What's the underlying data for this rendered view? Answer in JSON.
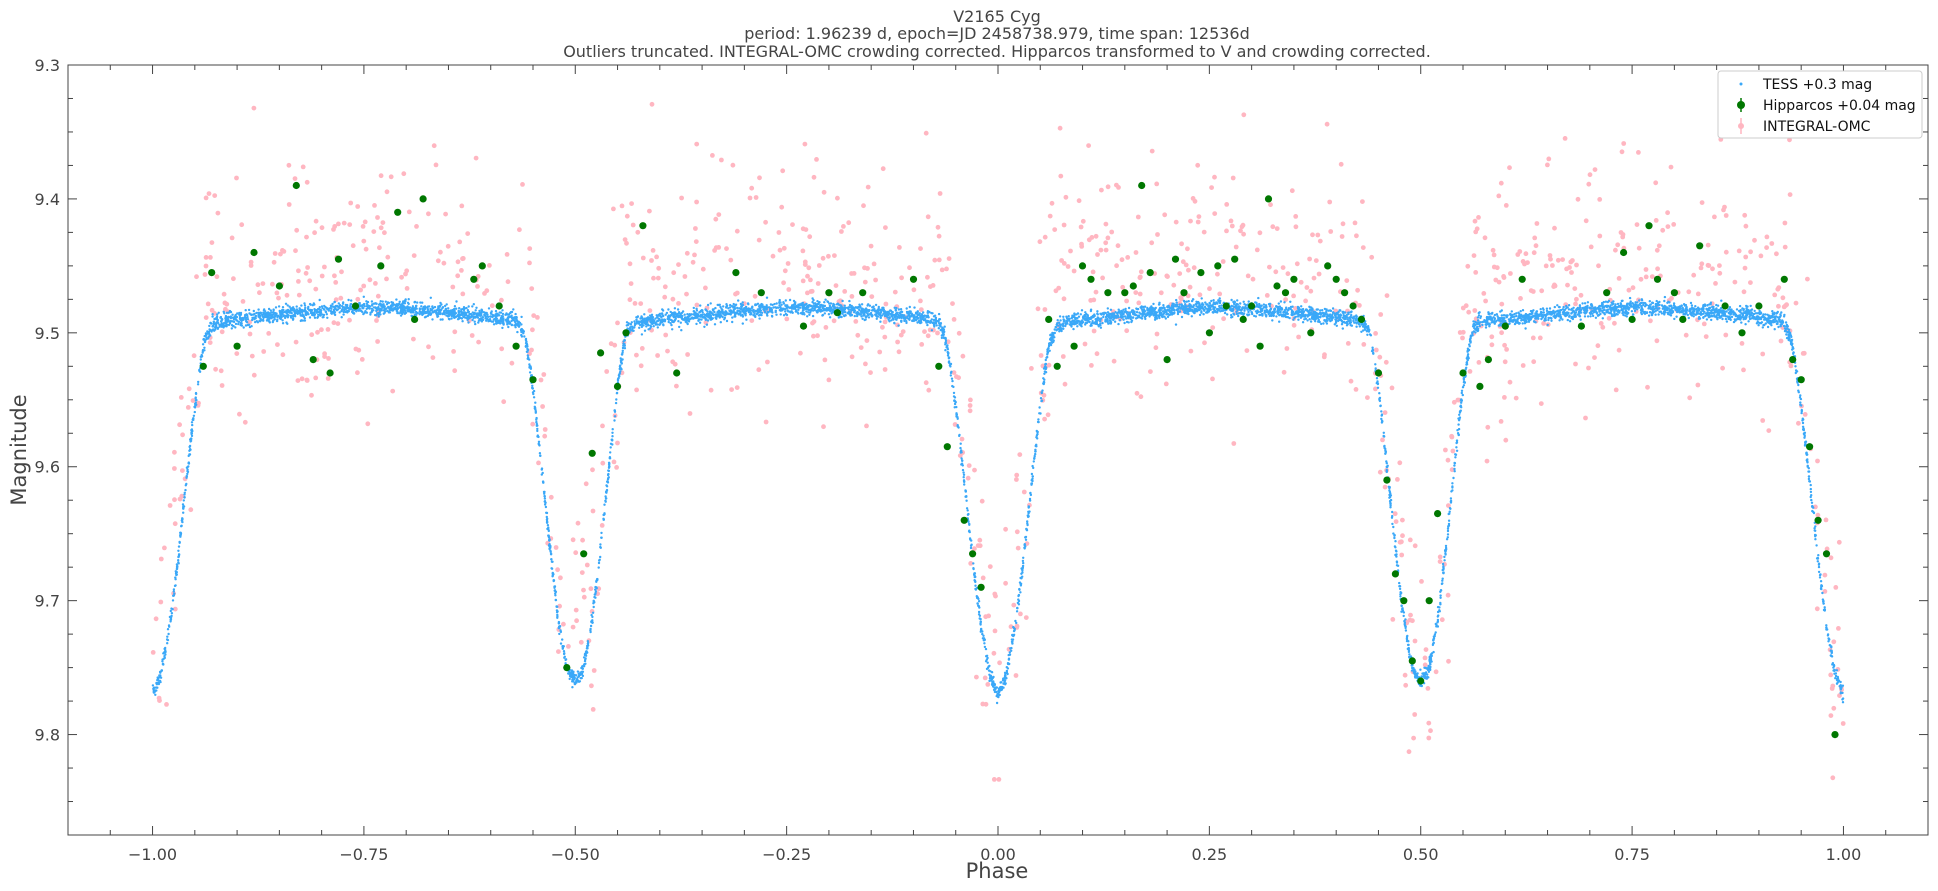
{
  "chart_data": {
    "type": "scatter",
    "title": "V2165 Cyg",
    "subtitle_1": "period: 1.96239 d, epoch=JD 2458738.979, time span: 12536d",
    "subtitle_2": "Outliers truncated. INTEGRAL-OMC crowding corrected. Hipparcos transformed to V and crowding corrected.",
    "xlabel": "Phase",
    "ylabel": "Magnitude",
    "xlim": [
      -1.1,
      1.1
    ],
    "ylim": [
      9.3,
      9.875
    ],
    "y_inverted": true,
    "grid": false,
    "legend_position": "top-right",
    "x_ticks": [
      -1.0,
      -0.75,
      -0.5,
      -0.25,
      0.0,
      0.25,
      0.5,
      0.75,
      1.0
    ],
    "x_tick_labels": [
      "−1.00",
      "−0.75",
      "−0.50",
      "−0.25",
      "0.00",
      "0.25",
      "0.50",
      "0.75",
      "1.00"
    ],
    "y_ticks": [
      9.3,
      9.4,
      9.5,
      9.6,
      9.7,
      9.8
    ],
    "y_tick_labels": [
      "9.3",
      "9.4",
      "9.5",
      "9.6",
      "9.7",
      "9.8"
    ],
    "series": [
      {
        "name": "TESS +0.3 mag",
        "color": "#3aa8f8",
        "marker": "dot",
        "x": [
          0.0,
          0.01,
          0.02,
          0.03,
          0.04,
          0.05,
          0.06,
          0.07,
          0.08,
          0.1,
          0.15,
          0.2,
          0.25,
          0.3,
          0.35,
          0.4,
          0.43,
          0.44,
          0.45,
          0.46,
          0.47,
          0.48,
          0.49,
          0.5,
          0.51,
          0.52,
          0.53,
          0.54,
          0.55,
          0.56,
          0.57,
          0.6,
          0.65,
          0.7,
          0.75,
          0.8,
          0.85,
          0.9,
          0.93,
          0.94,
          0.95,
          0.96,
          0.97,
          0.98,
          0.99,
          1.0
        ],
        "y": [
          9.77,
          9.755,
          9.72,
          9.67,
          9.61,
          9.555,
          9.51,
          9.495,
          9.492,
          9.49,
          9.487,
          9.483,
          9.481,
          9.482,
          9.485,
          9.488,
          9.491,
          9.5,
          9.54,
          9.6,
          9.66,
          9.715,
          9.75,
          9.76,
          9.75,
          9.715,
          9.66,
          9.6,
          9.54,
          9.5,
          9.492,
          9.49,
          9.487,
          9.483,
          9.481,
          9.482,
          9.485,
          9.488,
          9.491,
          9.51,
          9.555,
          9.61,
          9.67,
          9.72,
          9.755,
          9.77
        ]
      },
      {
        "name": "Hipparcos +0.04 mag",
        "color": "#007700",
        "marker": "circle-errorbar",
        "x": [
          0.06,
          0.07,
          0.09,
          0.1,
          0.11,
          0.13,
          0.15,
          0.16,
          0.17,
          0.18,
          0.2,
          0.21,
          0.22,
          0.24,
          0.25,
          0.26,
          0.27,
          0.28,
          0.29,
          0.3,
          0.31,
          0.32,
          0.33,
          0.34,
          0.35,
          0.37,
          0.39,
          0.4,
          0.41,
          0.42,
          0.43,
          0.45,
          0.46,
          0.47,
          0.48,
          0.49,
          0.5,
          0.51,
          0.52,
          0.55,
          0.57,
          0.58,
          0.6,
          0.62,
          0.69,
          0.72,
          0.74,
          0.75,
          0.77,
          0.78,
          0.8,
          0.81,
          0.83,
          0.86,
          0.88,
          0.9,
          0.93,
          0.94,
          0.95,
          0.96,
          0.97,
          0.98,
          0.99,
          -0.02,
          -0.03,
          -0.04,
          -0.06,
          -0.07,
          -0.1,
          -0.16,
          -0.19,
          -0.2,
          -0.23,
          -0.28,
          -0.31,
          -0.38,
          -0.42,
          -0.44,
          -0.45,
          -0.47,
          -0.48,
          -0.49,
          -0.51,
          -0.55,
          -0.57,
          -0.59,
          -0.61,
          -0.62,
          -0.68,
          -0.69,
          -0.71,
          -0.73,
          -0.76,
          -0.78,
          -0.79,
          -0.81,
          -0.83,
          -0.85,
          -0.88,
          -0.9,
          -0.93,
          -0.94
        ],
        "y": [
          9.49,
          9.525,
          9.51,
          9.45,
          9.46,
          9.47,
          9.47,
          9.465,
          9.39,
          9.455,
          9.52,
          9.445,
          9.47,
          9.455,
          9.5,
          9.45,
          9.48,
          9.445,
          9.49,
          9.48,
          9.51,
          9.4,
          9.465,
          9.47,
          9.46,
          9.5,
          9.45,
          9.46,
          9.47,
          9.48,
          9.49,
          9.53,
          9.61,
          9.68,
          9.7,
          9.745,
          9.76,
          9.7,
          9.635,
          9.53,
          9.54,
          9.52,
          9.495,
          9.46,
          9.495,
          9.47,
          9.44,
          9.49,
          9.42,
          9.46,
          9.47,
          9.49,
          9.435,
          9.48,
          9.5,
          9.48,
          9.46,
          9.52,
          9.535,
          9.585,
          9.64,
          9.665,
          9.8,
          9.69,
          9.665,
          9.64,
          9.585,
          9.525,
          9.46,
          9.47,
          9.485,
          9.47,
          9.495,
          9.47,
          9.455,
          9.53,
          9.42,
          9.5,
          9.54,
          9.515,
          9.59,
          9.665,
          9.75,
          9.535,
          9.51,
          9.48,
          9.45,
          9.46,
          9.4,
          9.49,
          9.41,
          9.45,
          9.48,
          9.445,
          9.53,
          9.52,
          9.39,
          9.465,
          9.44,
          9.51,
          9.455,
          9.525
        ]
      },
      {
        "name": "INTEGRAL-OMC",
        "color": "#ffb6c1",
        "marker": "circle-errorbar"
      }
    ]
  }
}
